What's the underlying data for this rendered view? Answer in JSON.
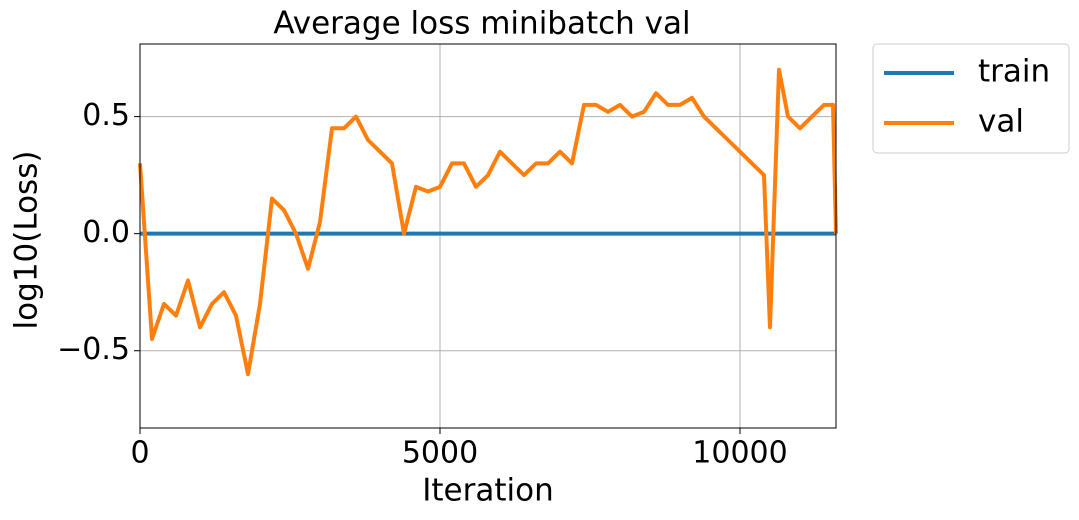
{
  "chart_data": {
    "type": "line",
    "title": "Average loss minibatch val",
    "x_label": "Iteration",
    "y_label": "log10(Loss)",
    "x": [
      0,
      200,
      400,
      600,
      800,
      1000,
      1200,
      1400,
      1600,
      1800,
      2000,
      2200,
      2400,
      2600,
      2800,
      3000,
      3200,
      3400,
      3600,
      3800,
      4000,
      4200,
      4400,
      4600,
      4800,
      5000,
      5200,
      5400,
      5600,
      5800,
      6000,
      6200,
      6400,
      6600,
      6800,
      7000,
      7200,
      7400,
      7600,
      7800,
      8000,
      8200,
      8400,
      8600,
      8800,
      9000,
      9200,
      9400,
      9600,
      9800,
      10000,
      10200,
      10400,
      10500,
      10650,
      10800,
      11000,
      11200,
      11400,
      11550,
      11600
    ],
    "series": [
      {
        "name": "train",
        "color": "#1f77b4",
        "values": [
          0,
          0,
          0,
          0,
          0,
          0,
          0,
          0,
          0,
          0,
          0,
          0,
          0,
          0,
          0,
          0,
          0,
          0,
          0,
          0,
          0,
          0,
          0,
          0,
          0,
          0,
          0,
          0,
          0,
          0,
          0,
          0,
          0,
          0,
          0,
          0,
          0,
          0,
          0,
          0,
          0,
          0,
          0,
          0,
          0,
          0,
          0,
          0,
          0,
          0,
          0,
          0,
          0,
          0,
          0,
          0,
          0,
          0,
          0,
          0,
          0
        ]
      },
      {
        "name": "val",
        "color": "#ff7f0e",
        "values": [
          0.3,
          -0.45,
          -0.3,
          -0.35,
          -0.2,
          -0.4,
          -0.3,
          -0.25,
          -0.35,
          -0.6,
          -0.3,
          0.15,
          0.1,
          0.0,
          -0.15,
          0.05,
          0.45,
          0.45,
          0.5,
          0.4,
          0.35,
          0.3,
          0.0,
          0.2,
          0.18,
          0.2,
          0.3,
          0.3,
          0.2,
          0.25,
          0.35,
          0.3,
          0.25,
          0.3,
          0.3,
          0.35,
          0.3,
          0.55,
          0.55,
          0.52,
          0.55,
          0.5,
          0.52,
          0.6,
          0.55,
          0.55,
          0.58,
          0.5,
          0.45,
          0.4,
          0.35,
          0.3,
          0.25,
          -0.4,
          0.7,
          0.5,
          0.45,
          0.5,
          0.55,
          0.55,
          0.0
        ]
      }
    ],
    "xlim": [
      0,
      11600
    ],
    "ylim": [
      -0.83,
      0.81
    ],
    "xticks": [
      0,
      5000,
      10000
    ],
    "yticks": [
      {
        "value": -0.5,
        "label": "−0.5"
      },
      {
        "value": 0,
        "label": "0.0"
      },
      {
        "value": 0.5,
        "label": "0.5"
      }
    ],
    "grid": true,
    "legend": "outside-upper-right"
  }
}
